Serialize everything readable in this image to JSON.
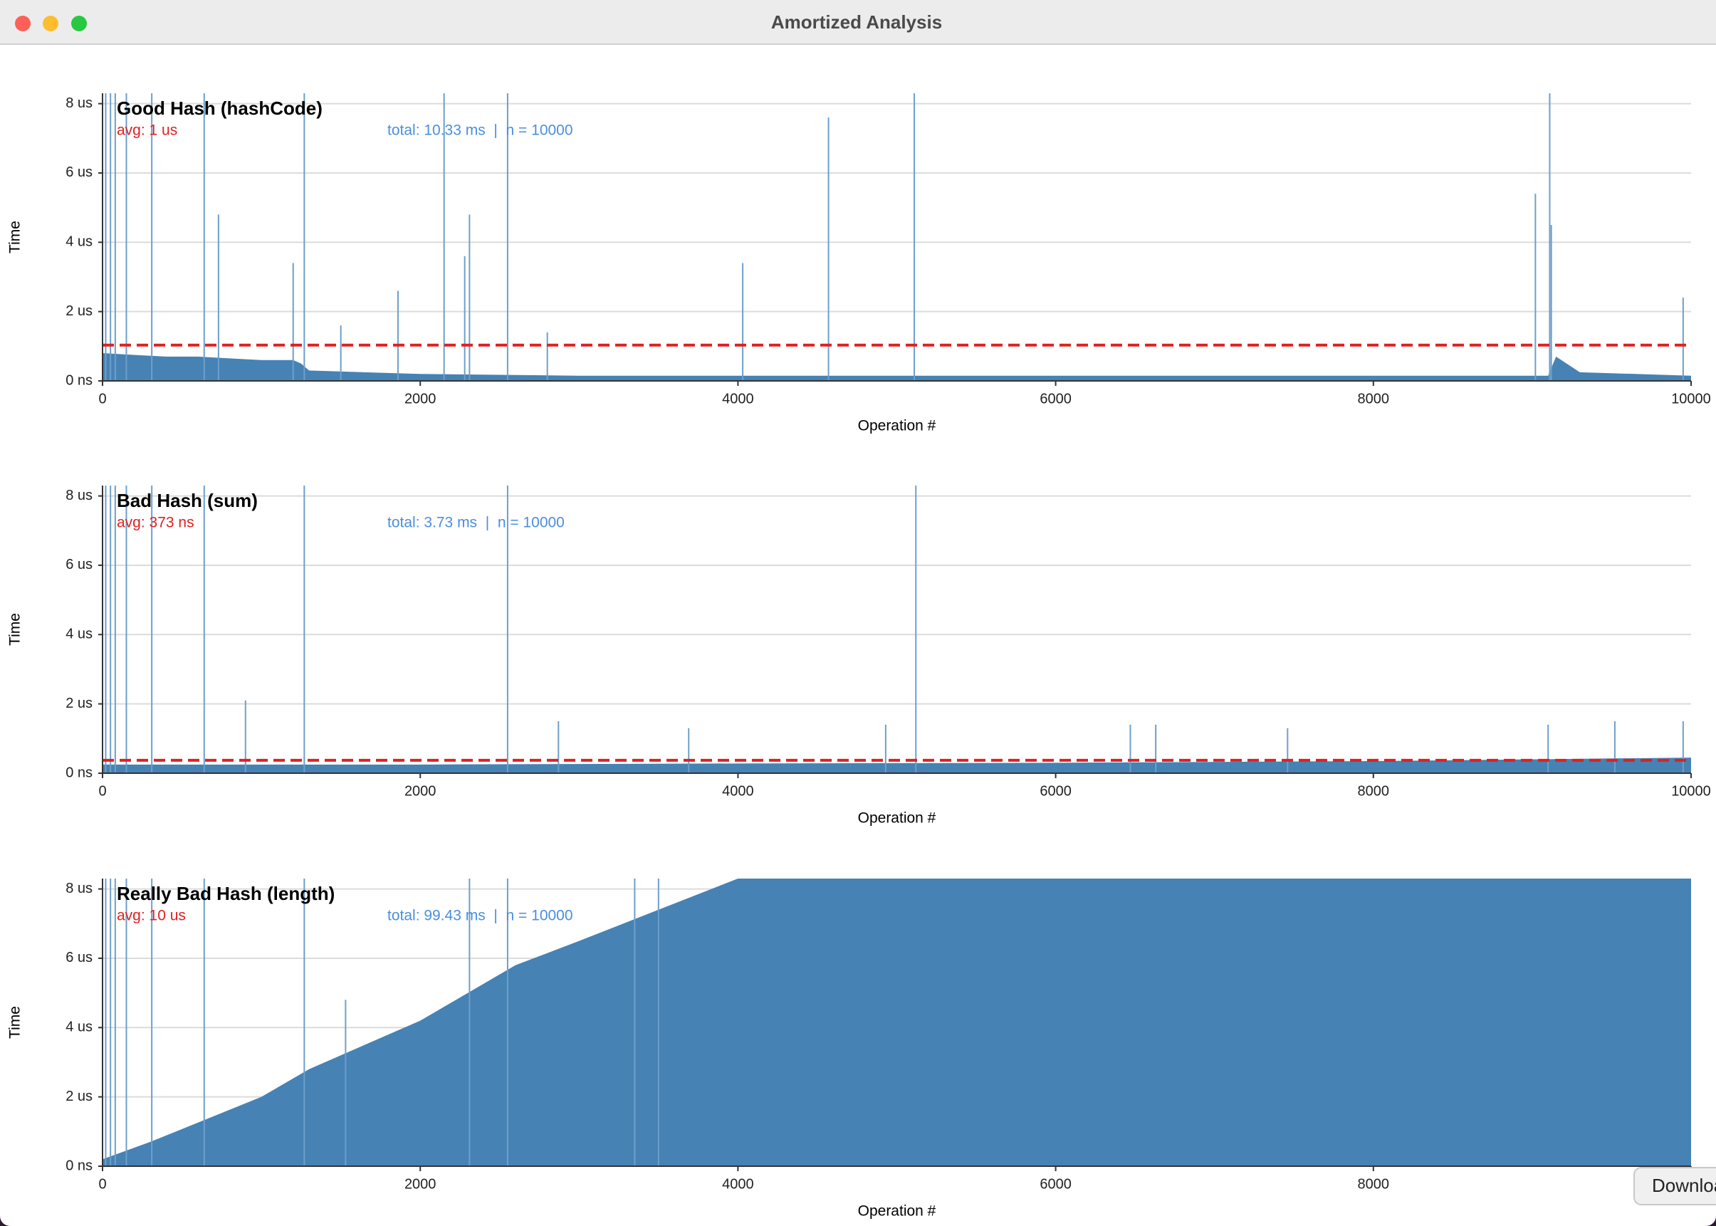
{
  "window": {
    "title": "Amortized Analysis",
    "download_button": "Download"
  },
  "chart_data": [
    {
      "type": "area",
      "title": "Good Hash (hashCode)",
      "avg_label": "avg: 1 us",
      "total_label": "total: 10.33 ms  |  n = 10000",
      "xlabel": "Operation #",
      "ylabel": "Time",
      "color": "#4682b4",
      "spike_color": "#6d9fcb",
      "avg_color": "#e02020",
      "grid": true,
      "xlim": [
        0,
        10000
      ],
      "ylim": [
        0,
        8300
      ],
      "xticks": [
        0,
        2000,
        4000,
        6000,
        8000,
        10000
      ],
      "yticks": [
        {
          "value": 0,
          "label": "0 ns"
        },
        {
          "value": 2000,
          "label": "2 us"
        },
        {
          "value": 4000,
          "label": "4 us"
        },
        {
          "value": 6000,
          "label": "6 us"
        },
        {
          "value": 8000,
          "label": "8 us"
        }
      ],
      "avg_value": 1033,
      "x": [
        0,
        200,
        400,
        600,
        800,
        1000,
        1200,
        1250,
        1300,
        2000,
        3000,
        4000,
        5000,
        6000,
        7000,
        8000,
        9000,
        9100,
        9150,
        9300,
        10000
      ],
      "values": [
        800,
        750,
        700,
        700,
        650,
        600,
        600,
        500,
        300,
        200,
        150,
        150,
        150,
        150,
        150,
        150,
        150,
        150,
        700,
        250,
        150
      ],
      "spikes": {
        "x": [
          20,
          50,
          80,
          150,
          310,
          640,
          730,
          1200,
          1270,
          1500,
          1860,
          2150,
          2280,
          2310,
          2550,
          2800,
          4030,
          4570,
          5110,
          9020,
          9110,
          9120,
          9950
        ],
        "values": [
          8300,
          8300,
          8300,
          8300,
          8300,
          8300,
          4800,
          3400,
          8300,
          1600,
          2600,
          8300,
          3600,
          4800,
          8300,
          1400,
          3400,
          7600,
          8300,
          5400,
          8300,
          4500,
          2400
        ]
      }
    },
    {
      "type": "area",
      "title": "Bad Hash (sum)",
      "avg_label": "avg: 373 ns",
      "total_label": "total: 3.73 ms  |  n = 10000",
      "xlabel": "Operation #",
      "ylabel": "Time",
      "color": "#4682b4",
      "spike_color": "#6d9fcb",
      "avg_color": "#e02020",
      "grid": true,
      "xlim": [
        0,
        10000
      ],
      "ylim": [
        0,
        8300
      ],
      "xticks": [
        0,
        2000,
        4000,
        6000,
        8000,
        10000
      ],
      "yticks": [
        {
          "value": 0,
          "label": "0 ns"
        },
        {
          "value": 2000,
          "label": "2 us"
        },
        {
          "value": 4000,
          "label": "4 us"
        },
        {
          "value": 6000,
          "label": "6 us"
        },
        {
          "value": 8000,
          "label": "8 us"
        }
      ],
      "avg_value": 373,
      "x": [
        0,
        2000,
        4000,
        6000,
        8000,
        9000,
        10000
      ],
      "values": [
        250,
        250,
        280,
        300,
        350,
        400,
        450
      ],
      "spikes": {
        "x": [
          20,
          50,
          80,
          150,
          310,
          640,
          900,
          1270,
          2550,
          2870,
          3690,
          4930,
          5120,
          6470,
          6630,
          7460,
          9100,
          9520,
          9950
        ],
        "values": [
          8300,
          8300,
          8300,
          8300,
          8300,
          8300,
          2100,
          8300,
          8300,
          1500,
          1300,
          1400,
          8300,
          1400,
          1400,
          1300,
          1400,
          1500,
          1500
        ]
      }
    },
    {
      "type": "area",
      "title": "Really Bad Hash (length)",
      "avg_label": "avg: 10 us",
      "total_label": "total: 99.43 ms  |  n = 10000",
      "xlabel": "Operation #",
      "ylabel": "Time",
      "color": "#4682b4",
      "spike_color": "#6d9fcb",
      "grid": true,
      "xlim": [
        0,
        10000
      ],
      "ylim": [
        0,
        8300
      ],
      "xticks": [
        0,
        2000,
        4000,
        6000,
        8000,
        10000
      ],
      "yticks": [
        {
          "value": 0,
          "label": "0 ns"
        },
        {
          "value": 2000,
          "label": "2 us"
        },
        {
          "value": 4000,
          "label": "4 us"
        },
        {
          "value": 6000,
          "label": "6 us"
        },
        {
          "value": 8000,
          "label": "8 us"
        }
      ],
      "x": [
        0,
        300,
        1000,
        1300,
        2000,
        2600,
        3000,
        3500,
        4000,
        4100,
        10000
      ],
      "values": [
        200,
        700,
        2000,
        2800,
        4200,
        5800,
        6500,
        7400,
        8300,
        8300,
        8300
      ],
      "spikes": {
        "x": [
          20,
          50,
          80,
          150,
          310,
          640,
          1270,
          1530,
          2310,
          2550,
          3350,
          3500
        ],
        "values": [
          8300,
          8300,
          8300,
          8300,
          8300,
          8300,
          8300,
          4800,
          8300,
          8300,
          8300,
          8300
        ]
      }
    }
  ]
}
